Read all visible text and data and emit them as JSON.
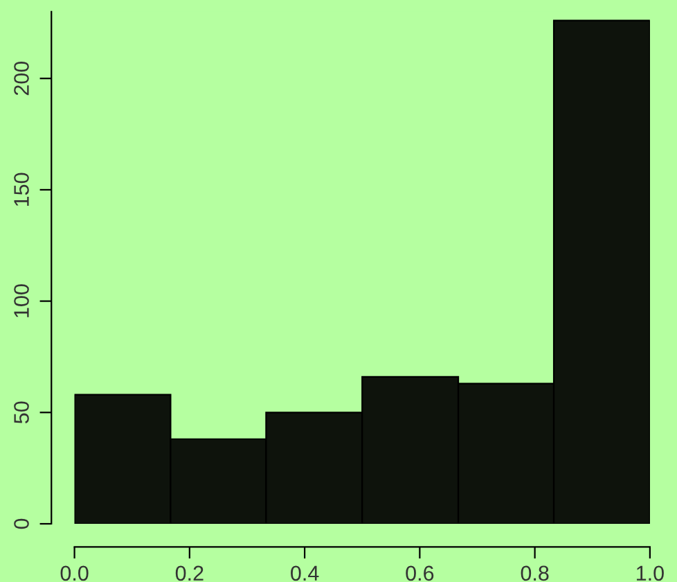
{
  "chart_data": {
    "type": "histogram",
    "bins": [
      0,
      0.167,
      0.333,
      0.5,
      0.667,
      0.833,
      1
    ],
    "values": [
      58,
      38,
      50,
      66,
      63,
      226
    ],
    "color": "#0e130c",
    "xlim": [
      0,
      1
    ],
    "ylim": [
      0,
      230
    ],
    "xticks": [
      {
        "value": 0,
        "label": "0.0"
      },
      0.2,
      0.4,
      0.6,
      0.8,
      {
        "value": 1,
        "label": "1.0"
      }
    ],
    "yticks": [
      0,
      50,
      100,
      150,
      200
    ],
    "grid": false
  }
}
